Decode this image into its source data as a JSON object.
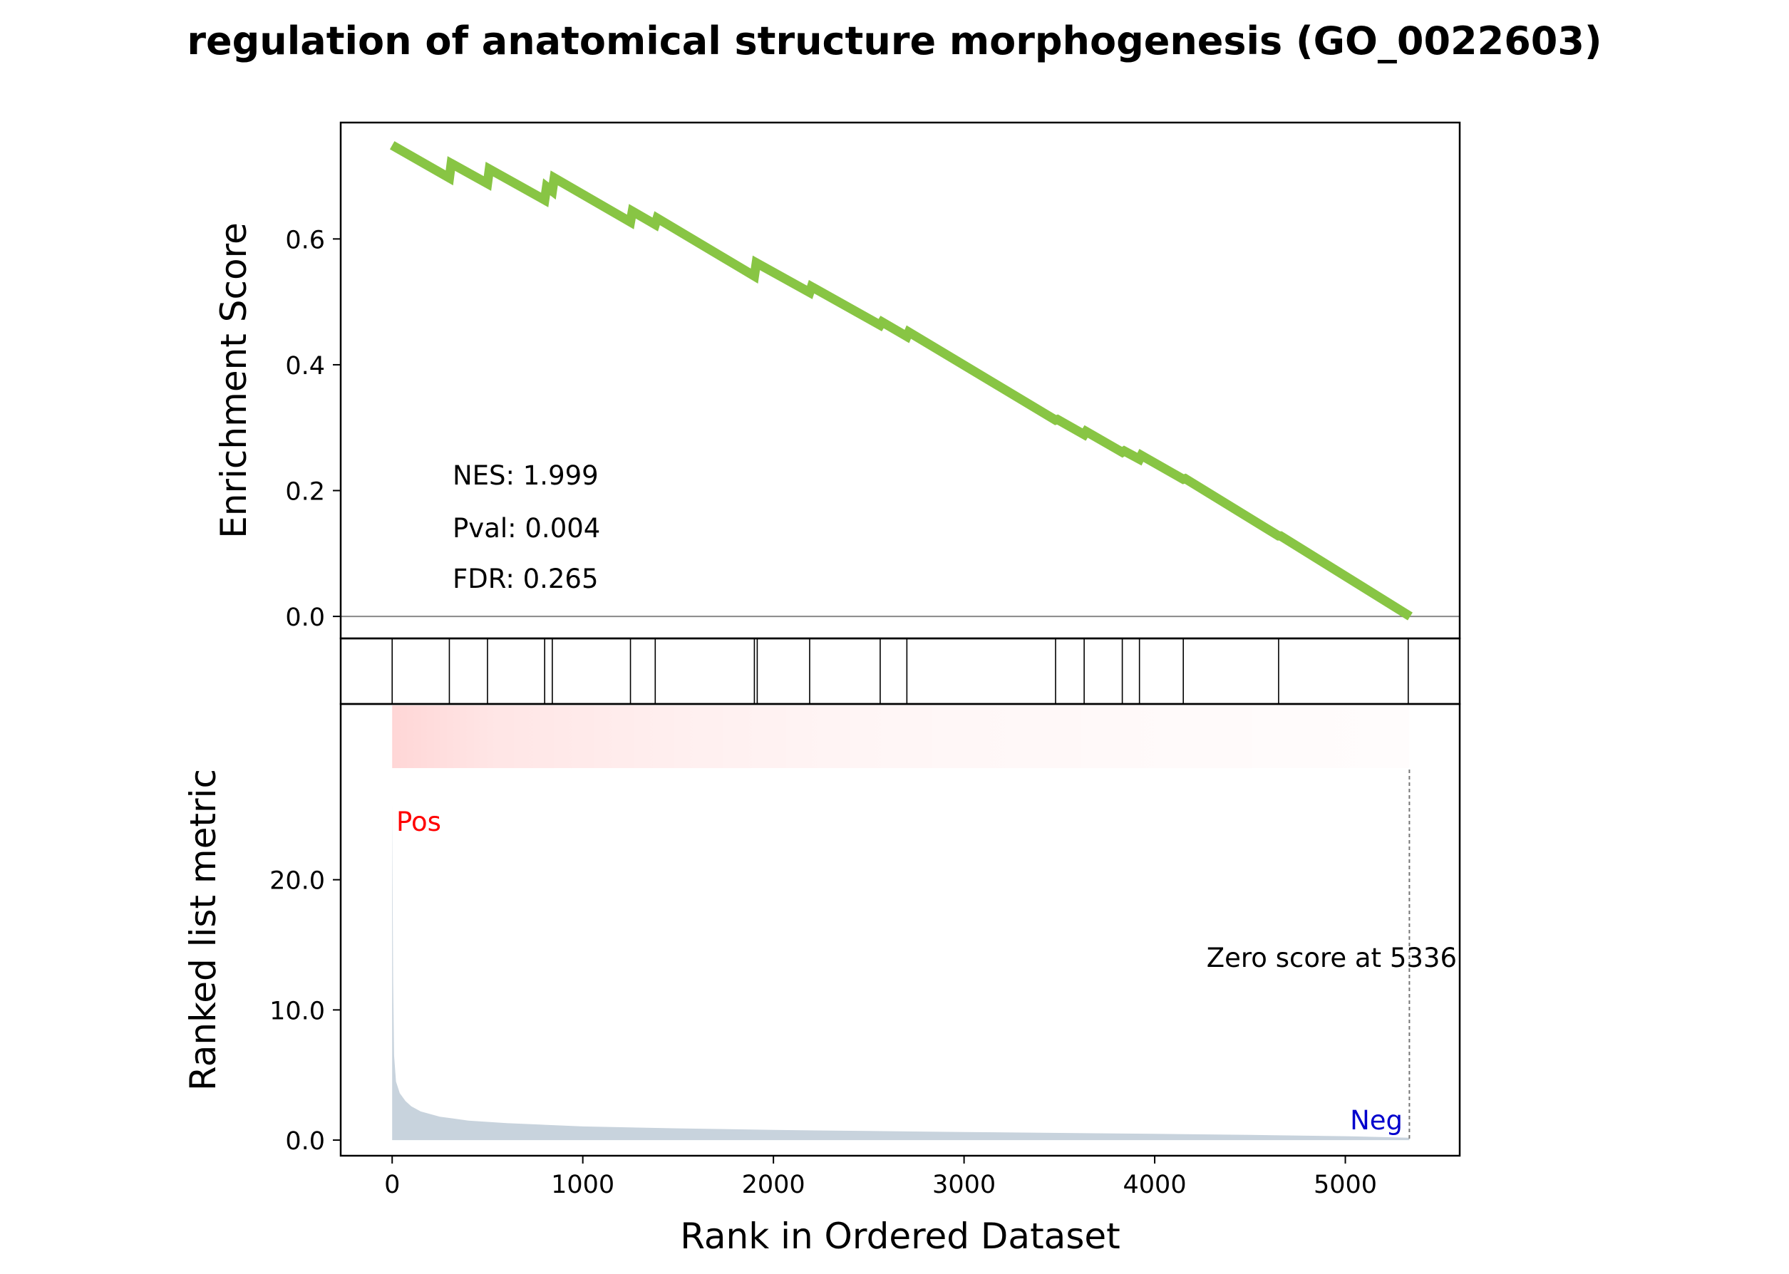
{
  "title": "regulation of anatomical structure morphogenesis (GO_0022603)",
  "colors": {
    "es_line": "#88c544",
    "pos_label": "#ff0000",
    "neg_label": "#0000cd",
    "metric_fill": "#c8d3dd",
    "heat": "#ff0000",
    "zero_line": "#888888"
  },
  "stats": {
    "nes": "NES: 1.999",
    "pval": "Pval: 0.004",
    "fdr": "FDR: 0.265"
  },
  "labels": {
    "pos": "Pos",
    "neg": "Neg",
    "zero_score": "Zero score at 5336"
  },
  "chart_data": [
    {
      "type": "line",
      "name": "enrichment-score",
      "ylabel": "Enrichment Score",
      "xlim": [
        -270,
        5600
      ],
      "ylim": [
        -0.035,
        0.785
      ],
      "yticks": [
        0.0,
        0.2,
        0.4,
        0.6
      ],
      "ytick_labels": [
        "0.0",
        "0.2",
        "0.4",
        "0.6"
      ],
      "points": [
        [
          0,
          0.749
        ],
        [
          300,
          0.697
        ],
        [
          310,
          0.72
        ],
        [
          500,
          0.688
        ],
        [
          510,
          0.711
        ],
        [
          800,
          0.662
        ],
        [
          810,
          0.683
        ],
        [
          840,
          0.676
        ],
        [
          850,
          0.697
        ],
        [
          1250,
          0.627
        ],
        [
          1260,
          0.644
        ],
        [
          1380,
          0.623
        ],
        [
          1390,
          0.633
        ],
        [
          1900,
          0.541
        ],
        [
          1910,
          0.562
        ],
        [
          2190,
          0.515
        ],
        [
          2200,
          0.524
        ],
        [
          2560,
          0.463
        ],
        [
          2570,
          0.468
        ],
        [
          2700,
          0.445
        ],
        [
          2710,
          0.452
        ],
        [
          3480,
          0.312
        ],
        [
          3490,
          0.313
        ],
        [
          3630,
          0.289
        ],
        [
          3640,
          0.294
        ],
        [
          3830,
          0.261
        ],
        [
          3840,
          0.263
        ],
        [
          3920,
          0.25
        ],
        [
          3930,
          0.256
        ],
        [
          4150,
          0.218
        ],
        [
          4160,
          0.219
        ],
        [
          4650,
          0.128
        ],
        [
          4660,
          0.128
        ],
        [
          5340,
          0.0
        ]
      ]
    },
    {
      "type": "hits",
      "name": "gene-hits",
      "positions": [
        0,
        300,
        500,
        800,
        840,
        1250,
        1380,
        1900,
        1915,
        2190,
        2560,
        2700,
        3480,
        3630,
        3830,
        3920,
        4150,
        4650,
        5330
      ]
    },
    {
      "type": "area",
      "name": "ranked-list-metric",
      "ylabel": "Ranked list metric",
      "xlabel": "Rank in Ordered Dataset",
      "xlim": [
        -270,
        5600
      ],
      "ylim": [
        -1.2,
        33.5
      ],
      "xticks": [
        0,
        1000,
        2000,
        3000,
        4000,
        5000
      ],
      "xtick_labels": [
        "0",
        "1000",
        "2000",
        "3000",
        "4000",
        "5000"
      ],
      "yticks": [
        0.0,
        10.0,
        20.0
      ],
      "ytick_labels": [
        "0.0",
        "10.0",
        "20.0"
      ],
      "zero_score_at": 5336,
      "points": [
        [
          0,
          25.8
        ],
        [
          5,
          12.0
        ],
        [
          10,
          6.5
        ],
        [
          20,
          4.5
        ],
        [
          40,
          3.6
        ],
        [
          70,
          3.0
        ],
        [
          100,
          2.6
        ],
        [
          150,
          2.2
        ],
        [
          250,
          1.8
        ],
        [
          400,
          1.5
        ],
        [
          600,
          1.3
        ],
        [
          1000,
          1.05
        ],
        [
          1500,
          0.9
        ],
        [
          2000,
          0.78
        ],
        [
          2500,
          0.7
        ],
        [
          3000,
          0.62
        ],
        [
          3500,
          0.55
        ],
        [
          4000,
          0.48
        ],
        [
          4500,
          0.4
        ],
        [
          5000,
          0.3
        ],
        [
          5336,
          0.18
        ]
      ]
    }
  ]
}
